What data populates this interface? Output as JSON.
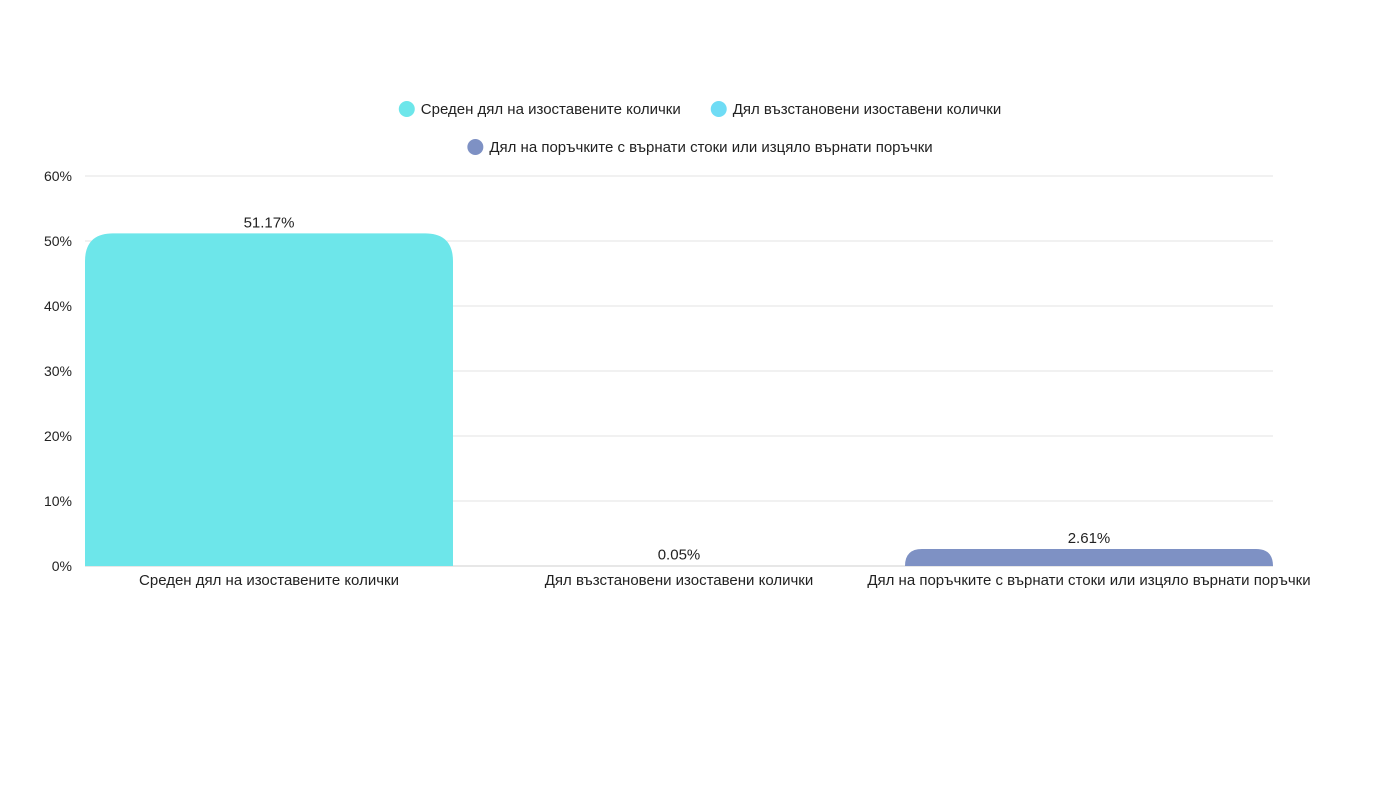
{
  "chart_data": {
    "type": "bar",
    "categories": [
      "Среден дял на изоставените колички",
      "Дял възстановени изоставени колички",
      "Дял на поръчките с върнати стоки или изцяло върнати поръчки"
    ],
    "values": [
      51.17,
      0.05,
      2.61
    ],
    "data_labels": [
      "51.17%",
      "0.05%",
      "2.61%"
    ],
    "colors": [
      "#6de6ea",
      "#6fdcf5",
      "#7e91c4"
    ],
    "ylim": [
      0,
      60
    ],
    "y_ticks": [
      0,
      10,
      20,
      30,
      40,
      50,
      60
    ],
    "y_tick_labels": [
      "0%",
      "10%",
      "20%",
      "30%",
      "40%",
      "50%",
      "60%"
    ],
    "grid": true,
    "legend_position": "top-center",
    "legend": [
      {
        "label": "Среден дял на изоставените колички",
        "color": "#6de6ea"
      },
      {
        "label": "Дял възстановени изоставени колички",
        "color": "#6fdcf5"
      },
      {
        "label": "Дял на поръчките с върнати стоки или изцяло върнати поръчки",
        "color": "#7e91c4"
      }
    ]
  }
}
